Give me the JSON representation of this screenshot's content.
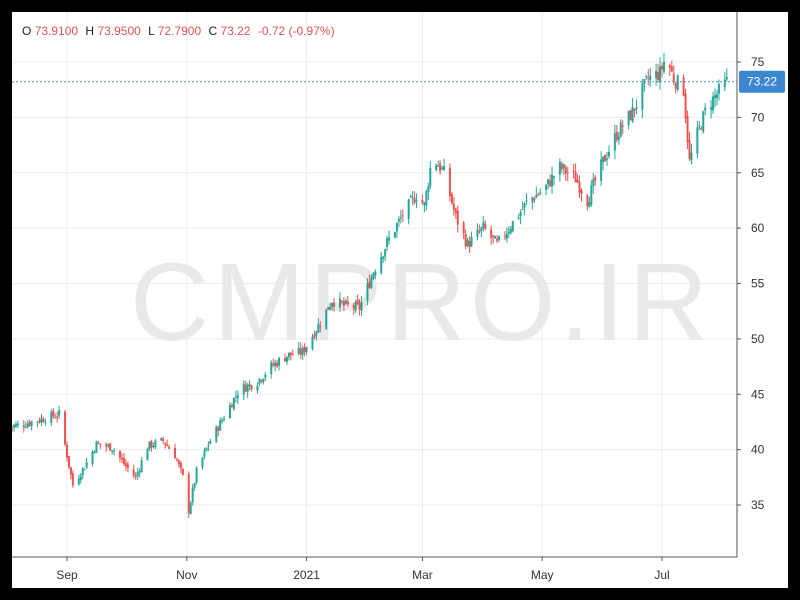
{
  "legend": {
    "open_key": "O",
    "open": "73.9100",
    "high_key": "H",
    "high": "73.9500",
    "low_key": "L",
    "low": "72.7900",
    "close_key": "C",
    "close": "73.22",
    "change": "-0.72 (-0.97%)"
  },
  "watermark": "CMPRO.IR",
  "colors": {
    "up": "#26a69a",
    "down": "#ef5350",
    "grid": "#ececec",
    "price_line": "#4a90d9",
    "price_tag": "#3a87cf"
  },
  "chart_data": {
    "type": "candlestick",
    "title": "",
    "xlabel": "",
    "ylabel": "",
    "ylim": [
      30,
      80
    ],
    "yticks": [
      35,
      40,
      45,
      50,
      55,
      60,
      65,
      70,
      75
    ],
    "x_tick_labels": [
      "Sep",
      "Nov",
      "2021",
      "Mar",
      "May",
      "Jul"
    ],
    "current_price": 73.22,
    "current_price_label": "73.22",
    "close_path": [
      [
        "2020-08-01",
        42.0
      ],
      [
        "2020-08-10",
        42.3
      ],
      [
        "2020-08-20",
        42.8
      ],
      [
        "2020-08-28",
        43.2
      ],
      [
        "2020-09-01",
        39.5
      ],
      [
        "2020-09-04",
        36.8
      ],
      [
        "2020-09-10",
        38.5
      ],
      [
        "2020-09-16",
        40.5
      ],
      [
        "2020-09-24",
        40.2
      ],
      [
        "2020-10-01",
        38.5
      ],
      [
        "2020-10-06",
        37.5
      ],
      [
        "2020-10-12",
        40.3
      ],
      [
        "2020-10-20",
        40.8
      ],
      [
        "2020-10-26",
        39.5
      ],
      [
        "2020-10-31",
        37.0
      ],
      [
        "2020-11-02",
        34.5
      ],
      [
        "2020-11-06",
        38.0
      ],
      [
        "2020-11-12",
        40.5
      ],
      [
        "2020-11-20",
        43.0
      ],
      [
        "2020-11-28",
        45.5
      ],
      [
        "2020-12-06",
        46.0
      ],
      [
        "2020-12-14",
        47.5
      ],
      [
        "2020-12-22",
        48.5
      ],
      [
        "2020-12-30",
        48.8
      ],
      [
        "2021-01-08",
        51.5
      ],
      [
        "2021-01-14",
        53.5
      ],
      [
        "2021-01-20",
        53.0
      ],
      [
        "2021-01-28",
        52.8
      ],
      [
        "2021-02-05",
        56.5
      ],
      [
        "2021-02-12",
        59.0
      ],
      [
        "2021-02-20",
        61.5
      ],
      [
        "2021-02-26",
        63.0
      ],
      [
        "2021-03-02",
        62.0
      ],
      [
        "2021-03-06",
        66.5
      ],
      [
        "2021-03-12",
        65.0
      ],
      [
        "2021-03-18",
        61.0
      ],
      [
        "2021-03-24",
        58.5
      ],
      [
        "2021-04-01",
        60.0
      ],
      [
        "2021-04-08",
        58.5
      ],
      [
        "2021-04-16",
        60.5
      ],
      [
        "2021-04-24",
        62.5
      ],
      [
        "2021-05-02",
        63.5
      ],
      [
        "2021-05-10",
        65.5
      ],
      [
        "2021-05-18",
        64.5
      ],
      [
        "2021-05-24",
        62.5
      ],
      [
        "2021-06-01",
        66.0
      ],
      [
        "2021-06-08",
        68.5
      ],
      [
        "2021-06-16",
        70.5
      ],
      [
        "2021-06-24",
        73.5
      ],
      [
        "2021-06-30",
        74.0
      ],
      [
        "2021-07-03",
        75.5
      ],
      [
        "2021-07-07",
        73.5
      ],
      [
        "2021-07-12",
        72.5
      ],
      [
        "2021-07-15",
        66.0
      ],
      [
        "2021-07-19",
        68.5
      ],
      [
        "2021-07-24",
        71.0
      ],
      [
        "2021-08-03",
        73.2
      ]
    ]
  }
}
